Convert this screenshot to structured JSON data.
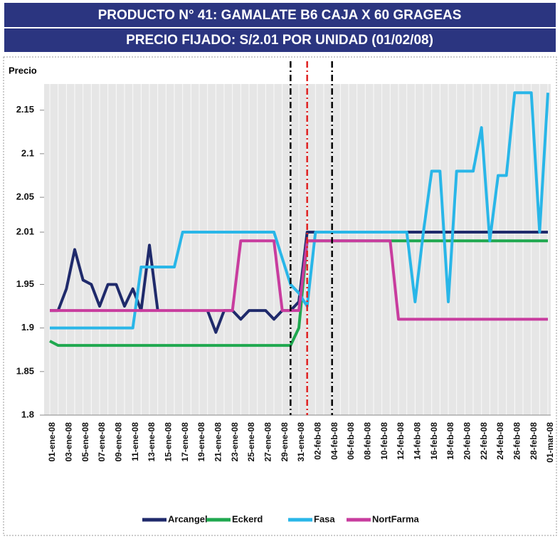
{
  "chart_data": {
    "type": "line",
    "title": "PRODUCTO N° 41: GAMALATE B6 CAJA X 60 GRAGEAS",
    "subtitle": "PRECIO FIJADO: S/2.01 POR UNIDAD (01/02/08)",
    "y_label": "Precio",
    "categories": [
      "01-ene-08",
      null,
      "03-ene-08",
      null,
      "05-ene-08",
      null,
      "07-ene-08",
      null,
      "09-ene-08",
      null,
      "11-ene-08",
      null,
      "13-ene-08",
      null,
      "15-ene-08",
      null,
      "17-ene-08",
      null,
      "19-ene-08",
      null,
      "21-ene-08",
      null,
      "23-ene-08",
      null,
      "25-ene-08",
      null,
      "27-ene-08",
      null,
      "29-ene-08",
      null,
      "31-ene-08",
      null,
      "02-feb-08",
      null,
      "04-feb-08",
      null,
      "06-feb-08",
      null,
      "08-feb-08",
      null,
      "10-feb-08",
      null,
      "12-feb-08",
      null,
      "14-feb-08",
      null,
      "16-feb-08",
      null,
      "18-feb-08",
      null,
      "20-feb-08",
      null,
      "22-feb-08",
      null,
      "24-feb-08",
      null,
      "26-feb-08",
      null,
      "28-feb-08",
      null,
      "01-mar-08"
    ],
    "series": [
      {
        "name": "Arcangel",
        "color": "#1f2a6b",
        "values": [
          1.92,
          1.92,
          1.945,
          1.99,
          1.955,
          1.95,
          1.925,
          1.95,
          1.95,
          1.925,
          1.945,
          1.92,
          1.995,
          1.92,
          null,
          null,
          null,
          null,
          null,
          1.92,
          1.895,
          1.92,
          1.92,
          1.91,
          1.92,
          1.92,
          1.92,
          1.91,
          1.92,
          1.92,
          1.93,
          2.01,
          2.01,
          2.01,
          2.01,
          2.01,
          2.01,
          2.01,
          2.01,
          2.01,
          2.01,
          2.01,
          2.01,
          2.01,
          2.01,
          2.01,
          2.01,
          2.01,
          2.01,
          2.01,
          2.01,
          2.01,
          2.01,
          2.01,
          2.01,
          2.01,
          2.01,
          2.01,
          2.01,
          2.01,
          2.01
        ]
      },
      {
        "name": "Eckerd",
        "color": "#1fa84f",
        "values": [
          1.885,
          1.88,
          1.88,
          1.88,
          1.88,
          1.88,
          1.88,
          1.88,
          1.88,
          1.88,
          1.88,
          1.88,
          1.88,
          1.88,
          1.88,
          1.88,
          1.88,
          1.88,
          1.88,
          1.88,
          1.88,
          1.88,
          1.88,
          1.88,
          1.88,
          1.88,
          1.88,
          1.88,
          1.88,
          1.88,
          1.9,
          2.0,
          2.0,
          2.0,
          2.0,
          2.0,
          2.0,
          2.0,
          2.0,
          2.0,
          2.0,
          2.0,
          2.0,
          2.0,
          2.0,
          2.0,
          2.0,
          2.0,
          2.0,
          2.0,
          2.0,
          2.0,
          2.0,
          2.0,
          2.0,
          2.0,
          2.0,
          2.0,
          2.0,
          2.0,
          2.0
        ]
      },
      {
        "name": "Fasa",
        "color": "#29b6e8",
        "values": [
          1.9,
          1.9,
          1.9,
          1.9,
          1.9,
          1.9,
          1.9,
          1.9,
          1.9,
          1.9,
          1.9,
          1.97,
          1.97,
          1.97,
          1.97,
          1.97,
          2.01,
          2.01,
          2.01,
          2.01,
          2.01,
          2.01,
          2.01,
          2.01,
          2.01,
          2.01,
          2.01,
          2.01,
          1.98,
          1.95,
          1.94,
          1.925,
          2.01,
          2.01,
          2.01,
          2.01,
          2.01,
          2.01,
          2.01,
          2.01,
          2.01,
          2.01,
          2.01,
          2.01,
          1.93,
          2.01,
          2.08,
          2.08,
          1.93,
          2.08,
          2.08,
          2.08,
          2.13,
          2.0,
          2.075,
          2.075,
          2.17,
          2.17,
          2.17,
          2.01,
          2.17
        ]
      },
      {
        "name": "NortFarma",
        "color": "#c83c9e",
        "values": [
          1.92,
          1.92,
          1.92,
          1.92,
          1.92,
          1.92,
          1.92,
          1.92,
          1.92,
          1.92,
          1.92,
          1.92,
          1.92,
          1.92,
          1.92,
          1.92,
          1.92,
          1.92,
          1.92,
          1.92,
          1.92,
          1.92,
          1.92,
          2.0,
          2.0,
          2.0,
          2.0,
          2.0,
          1.92,
          1.92,
          1.92,
          2.0,
          2.0,
          2.0,
          2.0,
          2.0,
          2.0,
          2.0,
          2.0,
          2.0,
          2.0,
          2.0,
          1.91,
          1.91,
          1.91,
          1.91,
          1.91,
          1.91,
          1.91,
          1.91,
          1.91,
          1.91,
          1.91,
          1.91,
          1.91,
          1.91,
          1.91,
          1.91,
          1.91,
          1.91,
          1.91
        ]
      }
    ],
    "ylim": [
      1.8,
      2.18
    ],
    "yticks": [
      1.8,
      1.85,
      1.9,
      1.95,
      2.01,
      2.05,
      2.1,
      2.15
    ],
    "reference_lines": [
      {
        "x": 29,
        "color": "#000000"
      },
      {
        "x": 31,
        "color": "#e02020"
      },
      {
        "x": 34,
        "color": "#000000"
      }
    ],
    "legend": "bottom"
  }
}
